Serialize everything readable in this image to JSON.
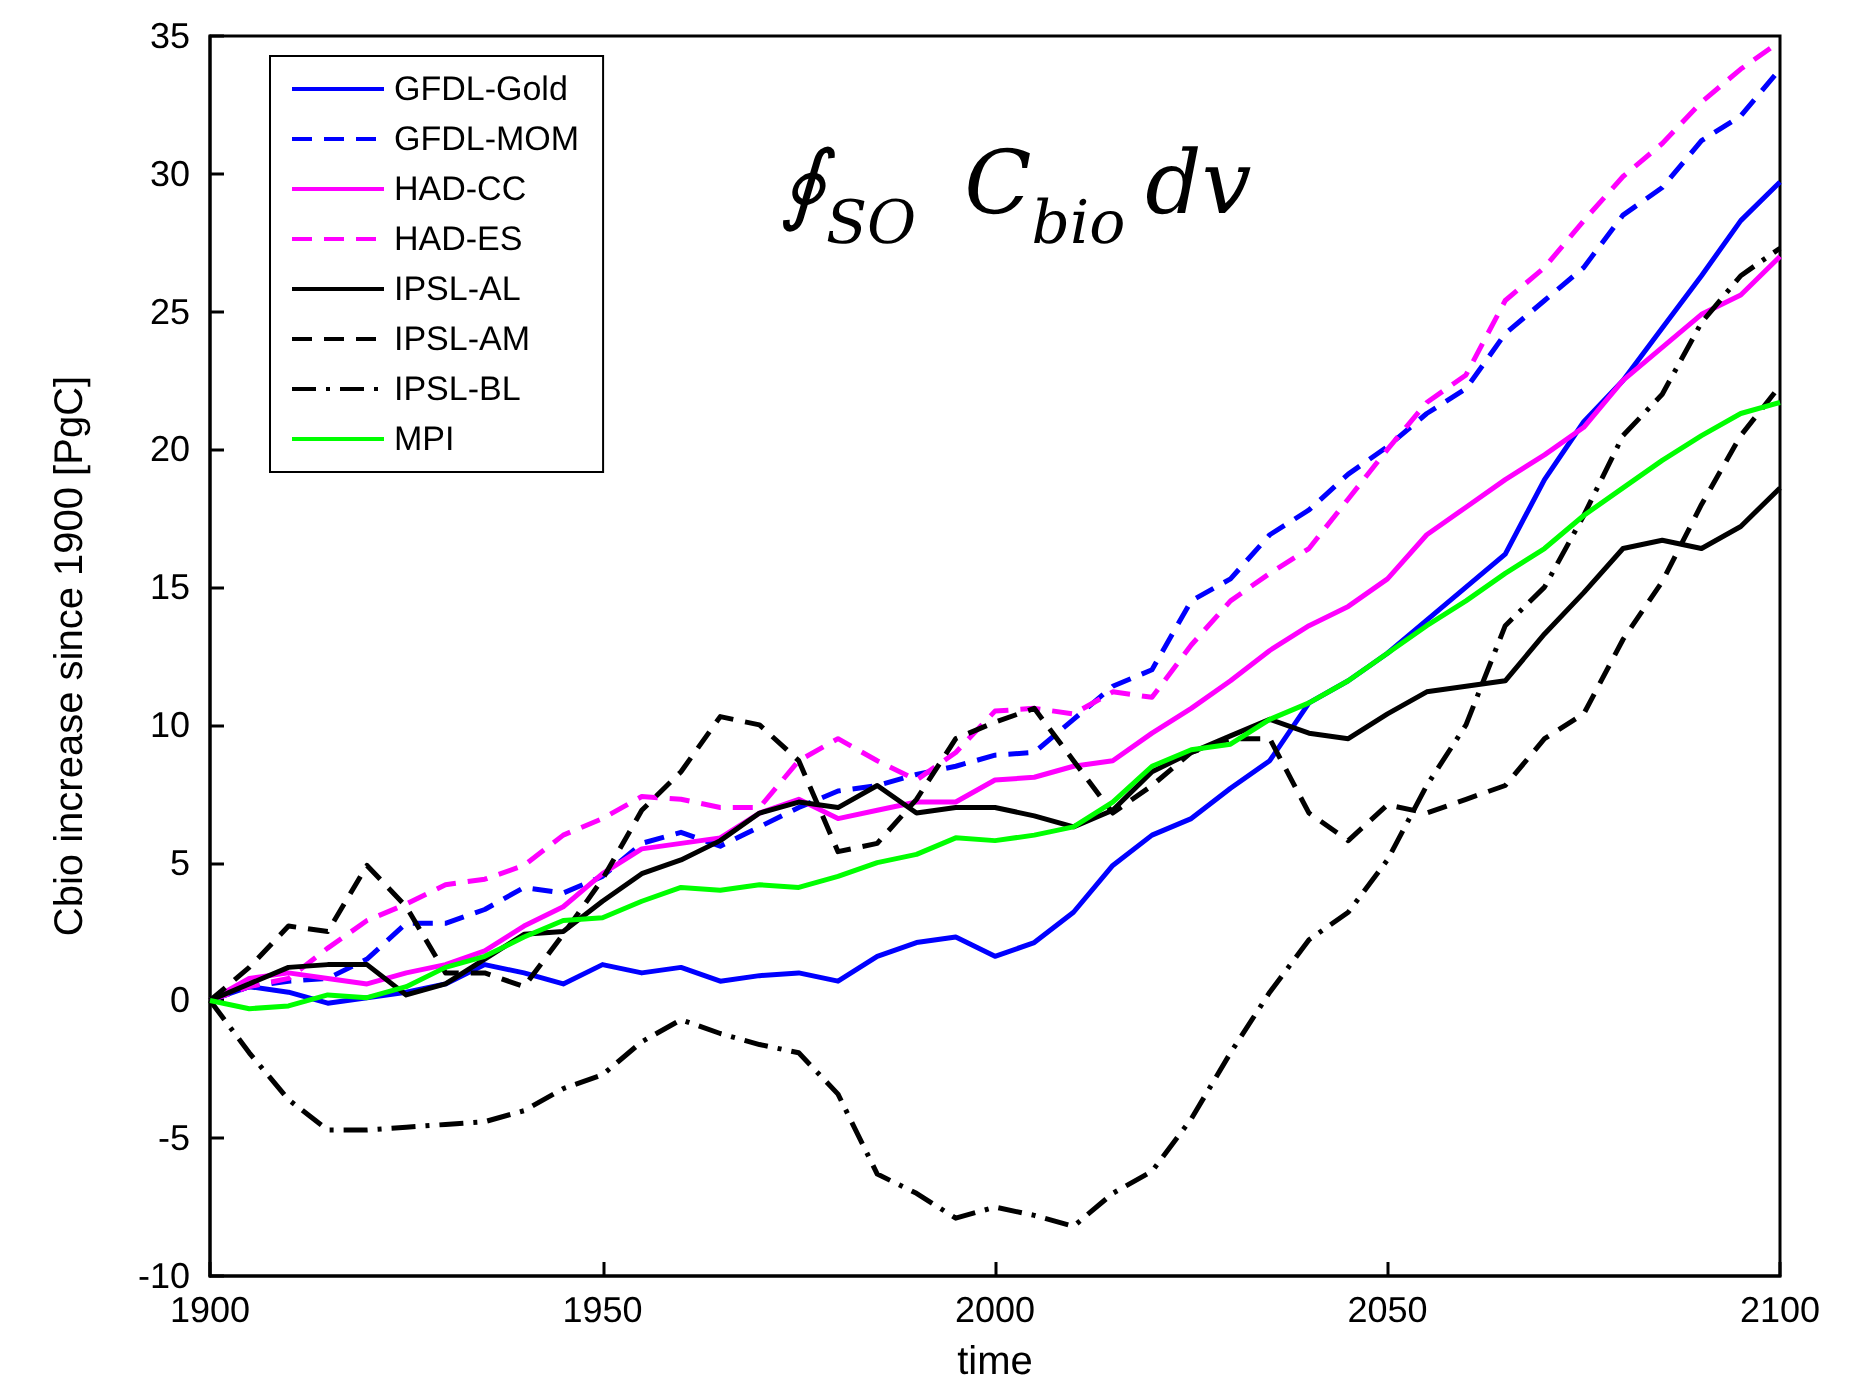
{
  "chart_data": {
    "type": "line",
    "xlabel": "time",
    "ylabel": "Cbio increase since 1900 [PgC]",
    "annotations": [
      "∮$_{SO}$ C$_{bio}$dv"
    ],
    "x": [
      1900,
      1905,
      1910,
      1915,
      1920,
      1925,
      1930,
      1935,
      1940,
      1945,
      1950,
      1955,
      1960,
      1965,
      1970,
      1975,
      1980,
      1985,
      1990,
      1995,
      2000,
      2005,
      2010,
      2015,
      2020,
      2025,
      2030,
      2035,
      2040,
      2045,
      2050,
      2055,
      2060,
      2065,
      2070,
      2075,
      2080,
      2085,
      2090,
      2095,
      2100
    ],
    "xlim": [
      1900,
      2100
    ],
    "xticks": [
      1900,
      1950,
      2000,
      2050,
      2100
    ],
    "ylim": [
      -10,
      35
    ],
    "yticks": [
      -10,
      -5,
      0,
      5,
      10,
      15,
      20,
      25,
      30,
      35
    ],
    "grid": false,
    "legend": "top left",
    "marker": "none",
    "series": [
      {
        "name": "GFDL-Gold",
        "color": "#0000ff",
        "line_style": "solid",
        "values": [
          0,
          0.5,
          0.3,
          -0.1,
          0.1,
          0.3,
          0.6,
          1.3,
          1.0,
          0.6,
          1.3,
          1.0,
          1.2,
          0.7,
          0.9,
          1.0,
          0.7,
          1.6,
          2.1,
          2.3,
          1.6,
          2.1,
          3.2,
          4.9,
          6.0,
          6.6,
          7.7,
          8.7,
          10.8,
          11.6,
          12.6,
          13.8,
          15.0,
          16.2,
          18.9,
          21.0,
          22.5,
          24.4,
          26.3,
          28.3,
          29.7
        ]
      },
      {
        "name": "GFDL-MOM",
        "color": "#0000ff",
        "line_style": "dashed",
        "values": [
          0,
          0.5,
          0.7,
          0.8,
          1.5,
          2.8,
          2.8,
          3.3,
          4.1,
          3.9,
          4.5,
          5.7,
          6.1,
          5.6,
          6.3,
          7.0,
          7.6,
          7.8,
          8.2,
          8.5,
          8.9,
          9.0,
          10.2,
          11.4,
          12.0,
          14.5,
          15.3,
          16.9,
          17.8,
          19.1,
          20.1,
          21.3,
          22.2,
          24.2,
          25.4,
          26.6,
          28.5,
          29.5,
          31.2,
          32.1,
          33.8
        ]
      },
      {
        "name": "HAD-CC",
        "color": "#ff00ff",
        "line_style": "solid",
        "values": [
          0,
          0.8,
          1.0,
          0.8,
          0.6,
          1.0,
          1.3,
          1.8,
          2.7,
          3.4,
          4.6,
          5.5,
          5.7,
          5.9,
          6.8,
          7.3,
          6.6,
          6.9,
          7.2,
          7.2,
          8.0,
          8.1,
          8.5,
          8.7,
          9.7,
          10.6,
          11.6,
          12.7,
          13.6,
          14.3,
          15.3,
          16.9,
          17.9,
          18.9,
          19.8,
          20.8,
          22.5,
          23.7,
          24.9,
          25.6,
          27.0
        ]
      },
      {
        "name": "HAD-ES",
        "color": "#ff00ff",
        "line_style": "dashed",
        "values": [
          0,
          0.5,
          0.8,
          1.9,
          2.9,
          3.5,
          4.2,
          4.4,
          4.9,
          6.0,
          6.6,
          7.4,
          7.3,
          7.0,
          7.0,
          8.7,
          9.5,
          8.7,
          8.0,
          9.0,
          10.5,
          10.6,
          10.4,
          11.2,
          11.0,
          12.9,
          14.5,
          15.5,
          16.4,
          18.2,
          20.0,
          21.7,
          22.7,
          25.4,
          26.6,
          28.3,
          29.9,
          31.1,
          32.6,
          33.8,
          34.8
        ]
      },
      {
        "name": "IPSL-AL",
        "color": "#000000",
        "line_style": "solid",
        "values": [
          0,
          0.6,
          1.2,
          1.3,
          1.3,
          0.2,
          0.6,
          1.5,
          2.4,
          2.5,
          3.6,
          4.6,
          5.1,
          5.8,
          6.8,
          7.2,
          7.0,
          7.8,
          6.8,
          7.0,
          7.0,
          6.7,
          6.3,
          6.9,
          8.3,
          9.0,
          9.6,
          10.2,
          9.7,
          9.5,
          10.4,
          11.2,
          11.4,
          11.6,
          13.3,
          14.8,
          16.4,
          16.7,
          16.4,
          17.2,
          18.6
        ]
      },
      {
        "name": "IPSL-AM",
        "color": "#000000",
        "line_style": "dashed",
        "values": [
          0,
          1.2,
          2.7,
          2.5,
          4.9,
          3.4,
          1.0,
          1.0,
          0.5,
          2.4,
          4.4,
          6.9,
          8.3,
          10.3,
          10.0,
          8.7,
          5.4,
          5.7,
          7.3,
          9.5,
          10.1,
          10.6,
          8.7,
          6.8,
          7.8,
          9.0,
          9.5,
          9.5,
          6.8,
          5.8,
          7.1,
          6.8,
          7.3,
          7.8,
          9.5,
          10.4,
          13.1,
          15.2,
          18.0,
          20.5,
          22.3
        ]
      },
      {
        "name": "IPSL-BL",
        "color": "#000000",
        "line_style": "dashdot",
        "values": [
          0,
          -1.9,
          -3.6,
          -4.7,
          -4.7,
          -4.6,
          -4.5,
          -4.4,
          -4.0,
          -3.2,
          -2.7,
          -1.5,
          -0.7,
          -1.2,
          -1.6,
          -1.9,
          -3.4,
          -6.3,
          -7.0,
          -7.9,
          -7.5,
          -7.8,
          -8.2,
          -7.0,
          -6.2,
          -4.3,
          -1.9,
          0.3,
          2.2,
          3.2,
          5.1,
          7.8,
          10.0,
          13.6,
          15.0,
          17.6,
          20.5,
          22.0,
          24.6,
          26.3,
          27.3
        ]
      },
      {
        "name": "MPI",
        "color": "#00ff00",
        "line_style": "solid",
        "values": [
          0,
          -0.3,
          -0.2,
          0.2,
          0.1,
          0.5,
          1.2,
          1.6,
          2.3,
          2.9,
          3.0,
          3.6,
          4.1,
          4.0,
          4.2,
          4.1,
          4.5,
          5.0,
          5.3,
          5.9,
          5.8,
          6.0,
          6.3,
          7.2,
          8.5,
          9.1,
          9.3,
          10.2,
          10.8,
          11.6,
          12.6,
          13.6,
          14.5,
          15.5,
          16.4,
          17.6,
          18.6,
          19.6,
          20.5,
          21.3,
          21.7
        ]
      }
    ]
  }
}
